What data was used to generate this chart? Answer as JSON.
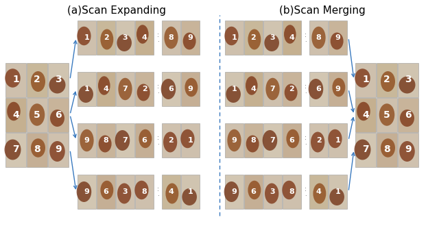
{
  "title_a": "(a)Scan Expanding",
  "title_b": "(b)Scan Merging",
  "title_fontsize": 11,
  "background_color": "#ffffff",
  "fig_width": 6.4,
  "fig_height": 3.3,
  "dpi": 100,
  "scan_rows_left": [
    {
      "nums": [
        "1",
        "2",
        "3",
        "4",
        "8",
        "9"
      ]
    },
    {
      "nums": [
        "1",
        "4",
        "7",
        "2",
        "6",
        "9"
      ]
    },
    {
      "nums": [
        "9",
        "8",
        "7",
        "6",
        "2",
        "1"
      ]
    },
    {
      "nums": [
        "9",
        "6",
        "3",
        "8",
        "4",
        "1"
      ]
    }
  ],
  "scan_rows_right": [
    {
      "nums": [
        "1",
        "2",
        "3",
        "4",
        "8",
        "9"
      ]
    },
    {
      "nums": [
        "1",
        "4",
        "7",
        "2",
        "6",
        "9"
      ]
    },
    {
      "nums": [
        "9",
        "8",
        "7",
        "6",
        "2",
        "1"
      ]
    },
    {
      "nums": [
        "9",
        "6",
        "3",
        "8",
        "4",
        "1"
      ]
    }
  ],
  "grid_left_rows": [
    [
      "1",
      "2",
      "3"
    ],
    [
      "4",
      "5",
      "6"
    ],
    [
      "7",
      "8",
      "9"
    ]
  ],
  "grid_right_rows": [
    [
      "1",
      "2",
      "3"
    ],
    [
      "4",
      "5",
      "6"
    ],
    [
      "7",
      "8",
      "9"
    ]
  ],
  "arrow_color": "#3a7abf",
  "divider_color": "#3a7abf",
  "skin_light": "#cec0ad",
  "skin_mid": "#c0aa90",
  "brown_dark": "#7a3010",
  "brown_mid": "#8b4515",
  "border_color": "#999999",
  "text_color": "#ffffff"
}
